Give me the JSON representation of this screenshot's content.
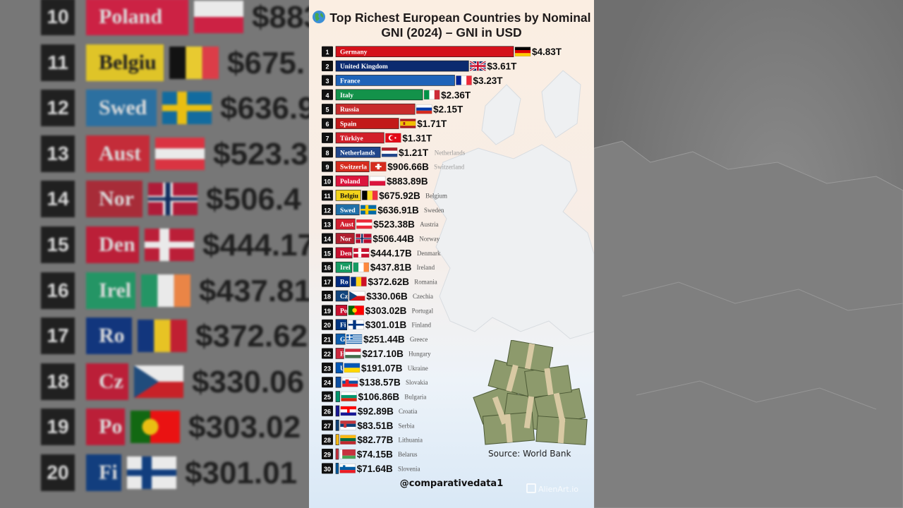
{
  "title_icon": "globe-icon",
  "chart_data": {
    "type": "bar",
    "orientation": "horizontal",
    "title": "Top Richest European Countries by Nominal GNI (2024) – GNI in USD",
    "unit": "USD",
    "xlim": [
      0,
      4830000000000
    ],
    "grid": false,
    "categories": [
      "Germany",
      "United Kingdom",
      "France",
      "Italy",
      "Russia",
      "Spain",
      "Türkiye",
      "Netherlands",
      "Switzerland",
      "Poland",
      "Belgium",
      "Sweden",
      "Austria",
      "Norway",
      "Denmark",
      "Ireland",
      "Romania",
      "Czechia",
      "Portugal",
      "Finland",
      "Greece",
      "Hungary",
      "Ukraine",
      "Slovakia",
      "Bulgaria",
      "Croatia",
      "Serbia",
      "Lithuania",
      "Belarus",
      "Slovenia"
    ],
    "ranks": [
      1,
      2,
      3,
      4,
      5,
      6,
      7,
      8,
      9,
      10,
      11,
      12,
      13,
      14,
      15,
      16,
      17,
      18,
      19,
      20,
      21,
      22,
      23,
      24,
      25,
      26,
      27,
      28,
      29,
      30
    ],
    "values": [
      4830000000000,
      3610000000000,
      3230000000000,
      2360000000000,
      2150000000000,
      1710000000000,
      1310000000000,
      1210000000000,
      906660000000,
      883890000000,
      675920000000,
      636910000000,
      523380000000,
      506440000000,
      444170000000,
      437810000000,
      372620000000,
      330060000000,
      303020000000,
      301010000000,
      251440000000,
      217100000000,
      191070000000,
      138570000000,
      106860000000,
      92890000000,
      83510000000,
      82770000000,
      74150000000,
      71640000000
    ],
    "value_labels": [
      "$4.83T",
      "$3.61T",
      "$3.23T",
      "$2.36T",
      "$2.15T",
      "$1.71T",
      "$1.31T",
      "$1.21T",
      "$906.66B",
      "$883.89B",
      "$675.92B",
      "$636.91B",
      "$523.38B",
      "$506.44B",
      "$444.17B",
      "$437.81B",
      "$372.62B",
      "$330.06B",
      "$303.02B",
      "$301.01B",
      "$251.44B",
      "$217.10B",
      "$191.07B",
      "$138.57B",
      "$106.86B",
      "$92.89B",
      "$83.51B",
      "$82.77B",
      "$74.15B",
      "$71.64B"
    ],
    "bar_labels": [
      "Germany",
      "United Kingdom",
      "France",
      "Italy",
      "Russia",
      "Spain",
      "Türkiye",
      "Netherlands",
      "Switzerla",
      "Poland",
      "Belgiu",
      "Swed",
      "Aust",
      "Nor",
      "Den",
      "Irel",
      "Ro",
      "Cz",
      "Po",
      "Fi",
      "G",
      "H",
      "U",
      "",
      "",
      "",
      "",
      "",
      "",
      ""
    ],
    "side_labels": [
      "",
      "",
      "",
      "",
      "",
      "",
      "",
      "Netherlands",
      "Switzerland",
      "",
      "Belgium",
      "Sweden",
      "Austria",
      "Norway",
      "Denmark",
      "Ireland",
      "Romania",
      "Czechia",
      "Portugal",
      "Finland",
      "Greece",
      "Hungary",
      "Ukraine",
      "Slovakia",
      "Bulgaria",
      "Croatia",
      "Serbia",
      "Lithuania",
      "Belarus",
      "Slovenia"
    ],
    "bar_colors": [
      "#d4111a",
      "#0b2a6f",
      "#1e63b8",
      "#13924a",
      "#c82c2c",
      "#c21a1a",
      "#d21f2a",
      "#21468b",
      "#d52b1e",
      "#dc143c",
      "#f2d21b",
      "#1f6fa8",
      "#d21f2f",
      "#b01f2e",
      "#c8102e",
      "#169b62",
      "#002b7f",
      "#11457e",
      "#c8102e",
      "#003580",
      "#0d5eaf",
      "#cd2a3e",
      "#0057b7",
      "#0b4ea2",
      "#00966e",
      "#171796",
      "#0c4076",
      "#fdb913",
      "#c8313e",
      "#005da4"
    ],
    "flags": [
      "de",
      "gb",
      "fr",
      "it",
      "ru",
      "es",
      "tr",
      "nl",
      "ch",
      "pl",
      "be",
      "se",
      "at",
      "no",
      "dk",
      "ie",
      "ro",
      "cz",
      "pt",
      "fi",
      "gr",
      "hu",
      "ua",
      "sk",
      "bg",
      "hr",
      "rs",
      "lt",
      "by",
      "si"
    ]
  },
  "source": "Source: World Bank",
  "handle": "@comparativedata1",
  "watermark": "AlienArt.io",
  "background": {
    "rows": [
      {
        "rank": "10",
        "label": "Poland",
        "value": "$883",
        "flag": "pl",
        "color": "#dc143c"
      },
      {
        "rank": "11",
        "label": "Belgiu",
        "value": "$675.",
        "flag": "be",
        "color": "#f2d21b"
      },
      {
        "rank": "12",
        "label": "Swed",
        "value": "$636.9",
        "flag": "se",
        "color": "#1f6fa8"
      },
      {
        "rank": "13",
        "label": "Aust",
        "value": "$523.3",
        "flag": "at",
        "color": "#d21f2f"
      },
      {
        "rank": "14",
        "label": "Nor",
        "value": "$506.4",
        "flag": "no",
        "color": "#b01f2e"
      },
      {
        "rank": "15",
        "label": "Den",
        "value": "$444.17",
        "flag": "dk",
        "color": "#c8102e"
      },
      {
        "rank": "16",
        "label": "Irel",
        "value": "$437.81",
        "flag": "ie",
        "color": "#169b62"
      },
      {
        "rank": "17",
        "label": "Ro",
        "value": "$372.62",
        "flag": "ro",
        "color": "#002b7f"
      },
      {
        "rank": "18",
        "label": "Cz",
        "value": "$330.06",
        "flag": "cz",
        "color": "#c8102e"
      },
      {
        "rank": "19",
        "label": "Po",
        "value": "$303.02",
        "flag": "pt",
        "color": "#c8102e"
      },
      {
        "rank": "20",
        "label": "Fi",
        "value": "$301.01",
        "flag": "fi",
        "color": "#003580"
      }
    ]
  }
}
